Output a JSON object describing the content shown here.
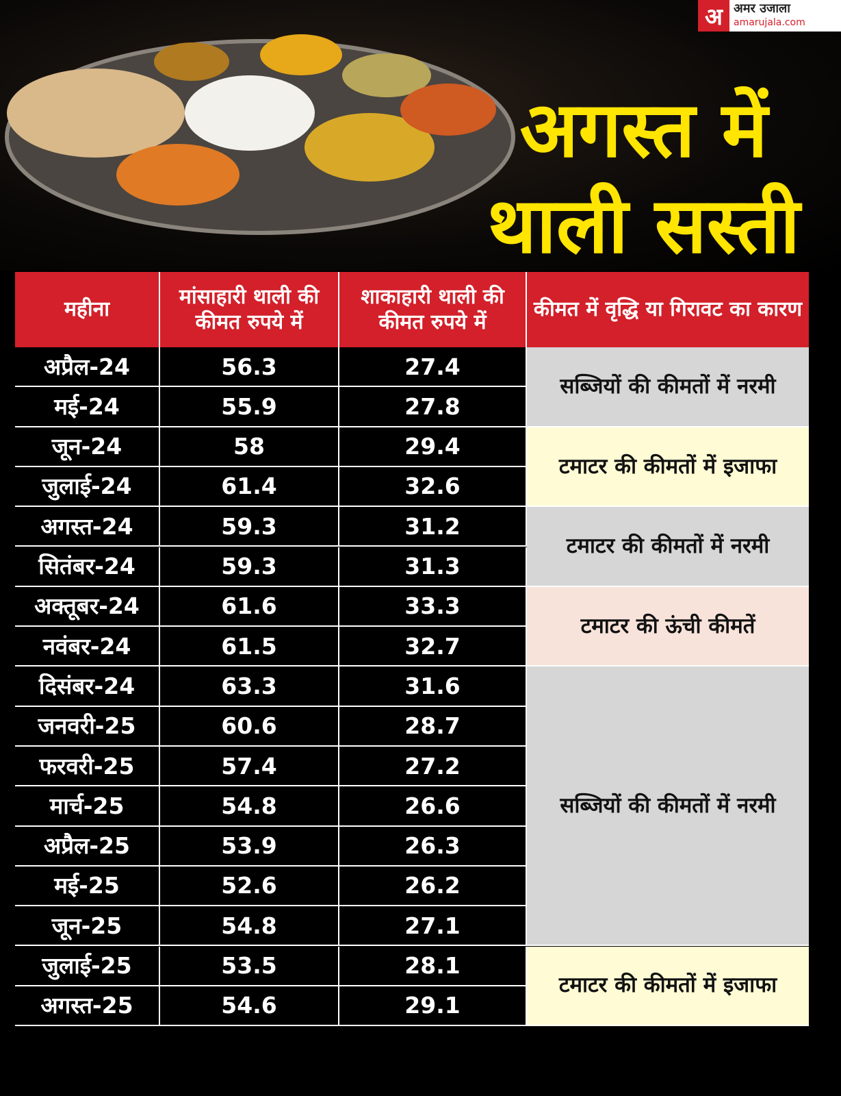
{
  "header": {
    "logo_mark": "अ",
    "logo_name": "अमर उजाला",
    "logo_site": "amarujala.com",
    "title_line1": "अगस्त में",
    "title_line2": "थाली सस्ती"
  },
  "table": {
    "columns": [
      "महीना",
      "मांसाहारी थाली की कीमत रुपये में",
      "शाकाहारी थाली की कीमत रुपये में",
      "कीमत में वृद्धि या गिरावट का कारण"
    ],
    "rows": [
      [
        "अप्रैल-24",
        56.3,
        27.4,
        "सब्जियों की कीमतों में नरमी"
      ],
      [
        "मई-24",
        55.9,
        27.8,
        null
      ],
      [
        "जून-24",
        58,
        29.4,
        "टमाटर की कीमतों में इजाफा"
      ],
      [
        "जुलाई-24",
        61.4,
        32.6,
        null
      ],
      [
        "अगस्त-24",
        59.3,
        31.2,
        "टमाटर की कीमतों में नरमी"
      ],
      [
        "सितंबर-24",
        59.3,
        31.3,
        null
      ],
      [
        "अक्तूबर-24",
        61.6,
        33.3,
        "टमाटर की ऊंची कीमतें"
      ],
      [
        "नवंबर-24",
        61.5,
        32.7,
        null
      ],
      [
        "दिसंबर-24",
        63.3,
        31.6,
        "सब्जियों की कीमतों में नरमी"
      ],
      [
        "जनवरी-25",
        60.6,
        28.7,
        null
      ],
      [
        "फरवरी-25",
        57.4,
        27.2,
        null
      ],
      [
        "मार्च-25",
        54.8,
        26.6,
        null
      ],
      [
        "अप्रैल-25",
        53.9,
        26.3,
        null
      ],
      [
        "मई-25",
        52.6,
        26.2,
        null
      ],
      [
        "जून-25",
        54.8,
        27.1,
        null
      ],
      [
        "जुलाई-25",
        53.5,
        28.1,
        "टमाटर की कीमतों में इजाफा"
      ],
      [
        "अगस्त-25",
        54.6,
        29.1,
        null
      ]
    ]
  }
}
